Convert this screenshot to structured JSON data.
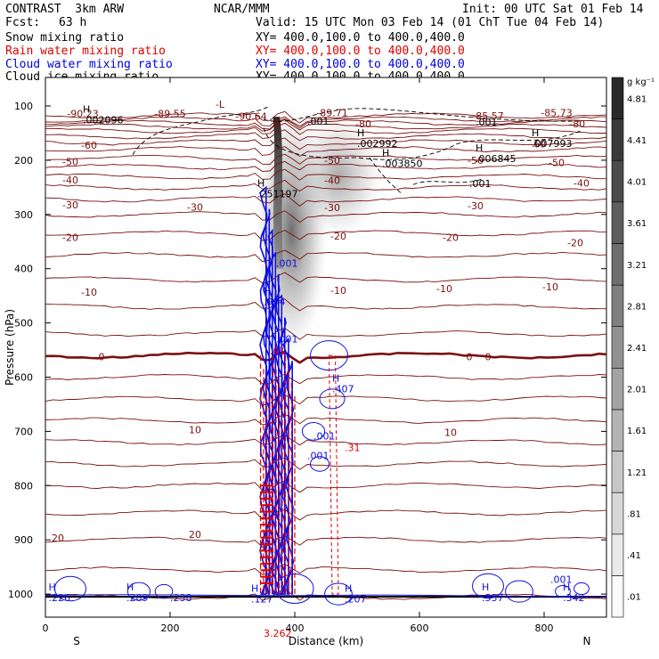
{
  "header": {
    "model": "CONTRAST  3km ARW",
    "center": "NCAR/MMM",
    "init": "Init: 00 UTC Sat 01 Feb 14",
    "fcst_label": "Fcst:",
    "fcst_value": "63 h",
    "valid": "Valid: 15 UTC Mon 03 Feb 14 (01 ChT Tue 04 Feb 14)"
  },
  "legend": [
    {
      "label": "Snow mixing ratio",
      "xs": "XY= 400.0,100.0 to 400.0,400.0",
      "color": "#000000"
    },
    {
      "label": "Rain water mixing ratio",
      "xs": "XY= 400.0,100.0 to 400.0,400.0",
      "color": "#e00000"
    },
    {
      "label": "Cloud water mixing ratio",
      "xs": "XY= 400.0,100.0 to 400.0,400.0",
      "color": "#0000e0"
    },
    {
      "label": "Cloud ice mixing ratio",
      "xs": "XY= 400.0,100.0 to 400.0,400.0",
      "color": "#000000"
    }
  ],
  "colors": {
    "temperature": "#7a1010",
    "rain": "#e00000",
    "cloud": "#1010e0",
    "ice": "#000000"
  },
  "chart_data": {
    "type": "cross-section",
    "xlabel": "Distance (km)",
    "ylabel": "Pressure (hPa)",
    "xlim": [
      0,
      900
    ],
    "ylim": [
      1040,
      40
    ],
    "x_ticks": [
      0,
      200,
      400,
      600,
      800
    ],
    "y_ticks": [
      100,
      200,
      300,
      400,
      500,
      600,
      700,
      800,
      900,
      1000
    ],
    "end_labels": {
      "left": "S",
      "right": "N"
    },
    "colorbar": {
      "unit": "g kg⁻¹",
      "levels": [
        ".01",
        ".41",
        ".81",
        "1.21",
        "1.61",
        "2.01",
        "2.41",
        "2.81",
        "3.21",
        "3.61",
        "4.01",
        "4.41",
        "4.81"
      ]
    },
    "temperature_labels": [
      {
        "x": 280,
        "p": 97,
        "text": "-L"
      },
      {
        "x": 60,
        "p": 114,
        "text": "-90.23"
      },
      {
        "x": 200,
        "p": 114,
        "text": "-89.55"
      },
      {
        "x": 330,
        "p": 119,
        "text": "-90.64"
      },
      {
        "x": 460,
        "p": 112,
        "text": "-89.71"
      },
      {
        "x": 710,
        "p": 118,
        "text": "-85.57"
      },
      {
        "x": 820,
        "p": 112,
        "text": "-85.73"
      },
      {
        "x": 510,
        "p": 133,
        "text": "-80"
      },
      {
        "x": 853,
        "p": 133,
        "text": "-80"
      },
      {
        "x": 70,
        "p": 172,
        "text": "-60"
      },
      {
        "x": 790,
        "p": 170,
        "text": "-60"
      },
      {
        "x": 40,
        "p": 203,
        "text": "-50"
      },
      {
        "x": 460,
        "p": 200,
        "text": "-50"
      },
      {
        "x": 690,
        "p": 200,
        "text": "-50"
      },
      {
        "x": 820,
        "p": 204,
        "text": "-50"
      },
      {
        "x": 40,
        "p": 236,
        "text": "-40"
      },
      {
        "x": 460,
        "p": 237,
        "text": "-40"
      },
      {
        "x": 860,
        "p": 242,
        "text": "-40"
      },
      {
        "x": 40,
        "p": 282,
        "text": "-30"
      },
      {
        "x": 240,
        "p": 286,
        "text": "-30"
      },
      {
        "x": 460,
        "p": 287,
        "text": "-30"
      },
      {
        "x": 690,
        "p": 284,
        "text": "-30"
      },
      {
        "x": 40,
        "p": 342,
        "text": "-20"
      },
      {
        "x": 470,
        "p": 340,
        "text": "-20"
      },
      {
        "x": 650,
        "p": 342,
        "text": "-20"
      },
      {
        "x": 850,
        "p": 352,
        "text": "-20"
      },
      {
        "x": 70,
        "p": 443,
        "text": "-10"
      },
      {
        "x": 470,
        "p": 440,
        "text": "-10"
      },
      {
        "x": 640,
        "p": 437,
        "text": "-10"
      },
      {
        "x": 810,
        "p": 433,
        "text": "-10"
      },
      {
        "x": 90,
        "p": 562,
        "text": "0"
      },
      {
        "x": 680,
        "p": 562,
        "text": "0"
      },
      {
        "x": 710,
        "p": 562,
        "text": "0"
      },
      {
        "x": 240,
        "p": 697,
        "text": "10"
      },
      {
        "x": 650,
        "p": 702,
        "text": "10"
      },
      {
        "x": 20,
        "p": 896,
        "text": "20"
      },
      {
        "x": 240,
        "p": 890,
        "text": "20"
      }
    ],
    "extrema_labels": [
      {
        "x": 60,
        "p": 129,
        "marker": "H",
        "value": ".002096",
        "color": "#000000"
      },
      {
        "x": 500,
        "p": 172,
        "marker": "H",
        "value": ".002992",
        "color": "#000000"
      },
      {
        "x": 780,
        "p": 172,
        "marker": "H",
        "value": ".007993",
        "color": "#000000"
      },
      {
        "x": 540,
        "p": 209,
        "marker": "H",
        "value": ".003850",
        "color": "#000000"
      },
      {
        "x": 690,
        "p": 200,
        "marker": "H",
        "value": ".006845",
        "color": "#000000"
      },
      {
        "x": 340,
        "p": 265,
        "marker": "H",
        "value": ".251197",
        "color": "#000000"
      },
      {
        "x": 420,
        "p": 131,
        "marker": "",
        "value": ".001",
        "color": "#000000"
      },
      {
        "x": 690,
        "p": 133,
        "marker": "",
        "value": ".001",
        "color": "#000000"
      },
      {
        "x": 680,
        "p": 246,
        "marker": "",
        "value": ".001",
        "color": "#000000"
      },
      {
        "x": 370,
        "p": 393,
        "marker": "",
        "value": ".001",
        "color": "#1010e0"
      },
      {
        "x": 350,
        "p": 464,
        "marker": "H",
        "value": ".994",
        "color": "#1010e0"
      },
      {
        "x": 370,
        "p": 533,
        "marker": "",
        "value": ".001",
        "color": "#1010e0"
      },
      {
        "x": 460,
        "p": 625,
        "marker": "H",
        "value": ".407",
        "color": "#1010e0"
      },
      {
        "x": 430,
        "p": 712,
        "marker": "",
        "value": ".001",
        "color": "#1010e0"
      },
      {
        "x": 420,
        "p": 748,
        "marker": "",
        "value": ".001",
        "color": "#1010e0"
      },
      {
        "x": 5,
        "p": 1010,
        "marker": "H",
        "value": ".226",
        "color": "#1010e0"
      },
      {
        "x": 130,
        "p": 1010,
        "marker": "H",
        "value": ".209",
        "color": "#1010e0"
      },
      {
        "x": 200,
        "p": 1010,
        "marker": "",
        "value": ".238",
        "color": "#1010e0"
      },
      {
        "x": 330,
        "p": 1012,
        "marker": "H",
        "value": ".127",
        "color": "#1010e0"
      },
      {
        "x": 480,
        "p": 1012,
        "marker": "H",
        "value": ".207",
        "color": "#1010e0"
      },
      {
        "x": 700,
        "p": 1010,
        "marker": "H",
        "value": ".537",
        "color": "#1010e0"
      },
      {
        "x": 830,
        "p": 1010,
        "marker": "H",
        "value": ".342",
        "color": "#1010e0"
      },
      {
        "x": 810,
        "p": 976,
        "marker": "",
        "value": ".001",
        "color": "#1010e0"
      },
      {
        "x": 350,
        "p": 1075,
        "marker": "",
        "value": "3.262",
        "color": "#e00000"
      },
      {
        "x": 360,
        "p": 555,
        "marker": "",
        "value": ".01",
        "color": "#e00000"
      },
      {
        "x": 480,
        "p": 733,
        "marker": "",
        "value": ".31",
        "color": "#e00000"
      }
    ]
  }
}
